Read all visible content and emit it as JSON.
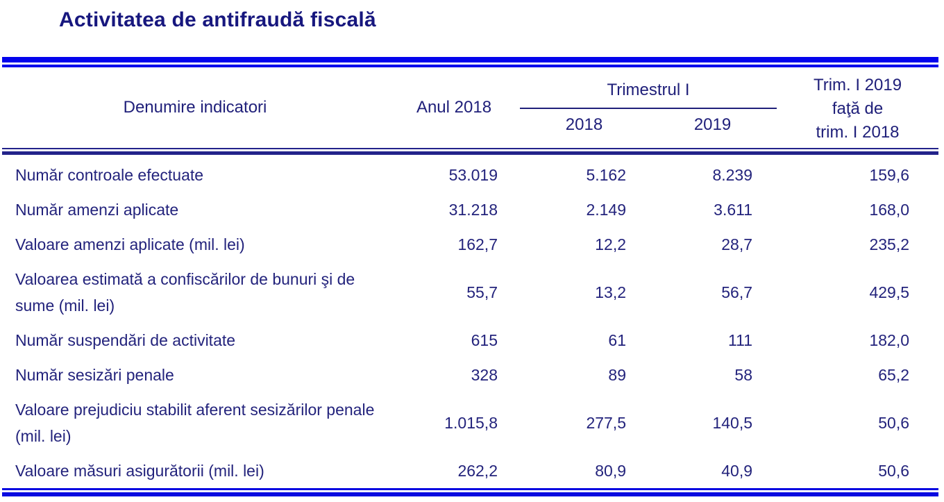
{
  "title": "Activitatea de antifraudă fiscală",
  "colors": {
    "outer_rule_blue": "#0404ec",
    "inner_rule_navy": "#23238a",
    "text_navy": "#20207a"
  },
  "table": {
    "header": {
      "col_indicator": "Denumire indicatori",
      "col_year": "Anul 2018",
      "col_group": "Trimestrul I",
      "col_q1_2018": "2018",
      "col_q1_2019": "2019",
      "col_ratio_lines": [
        "Trim. I 2019",
        "faţă de",
        "trim. I 2018"
      ]
    },
    "rows": [
      {
        "indicator": "Număr controale efectuate",
        "anul_2018": "53.019",
        "trim1_2018": "5.162",
        "trim1_2019": "8.239",
        "ratio": "159,6"
      },
      {
        "indicator": "Număr amenzi aplicate",
        "anul_2018": "31.218",
        "trim1_2018": "2.149",
        "trim1_2019": "3.611",
        "ratio": "168,0"
      },
      {
        "indicator": "Valoare amenzi aplicate (mil. lei)",
        "anul_2018": "162,7",
        "trim1_2018": "12,2",
        "trim1_2019": "28,7",
        "ratio": "235,2"
      },
      {
        "indicator": "Valoarea estimată a confiscărilor de bunuri şi de sume (mil. lei)",
        "anul_2018": "55,7",
        "trim1_2018": "13,2",
        "trim1_2019": "56,7",
        "ratio": "429,5"
      },
      {
        "indicator": "Număr suspendări de activitate",
        "anul_2018": "615",
        "trim1_2018": "61",
        "trim1_2019": "111",
        "ratio": "182,0"
      },
      {
        "indicator": "Număr sesizări penale",
        "anul_2018": "328",
        "trim1_2018": "89",
        "trim1_2019": "58",
        "ratio": "65,2"
      },
      {
        "indicator": "Valoare prejudiciu  stabilit aferent sesizărilor penale (mil. lei)",
        "anul_2018": "1.015,8",
        "trim1_2018": "277,5",
        "trim1_2019": "140,5",
        "ratio": "50,6"
      },
      {
        "indicator": "Valoare măsuri asigurătorii (mil. lei)",
        "anul_2018": "262,2",
        "trim1_2018": "80,9",
        "trim1_2019": "40,9",
        "ratio": "50,6"
      }
    ]
  }
}
